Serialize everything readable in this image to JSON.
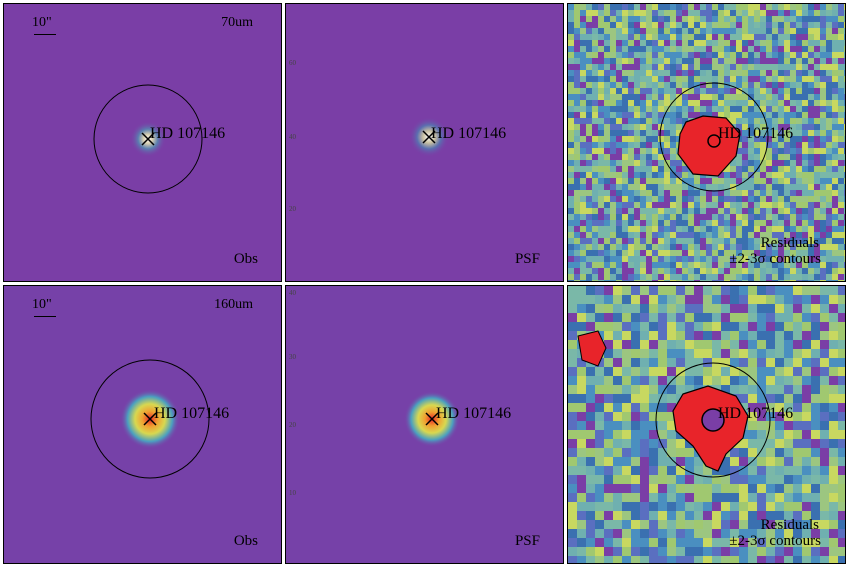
{
  "figure": {
    "rows": [
      {
        "band": "70um",
        "scale_label": "10\"",
        "obs_label": "Obs",
        "psf_label": "PSF",
        "residual_label": "Residuals",
        "contour_label": "±2-3σ contours",
        "star_label": "HD 107146",
        "tick_labels": [
          "60",
          "40",
          "20"
        ]
      },
      {
        "band": "160um",
        "scale_label": "10\"",
        "obs_label": "Obs",
        "psf_label": "PSF",
        "residual_label": "Residuals",
        "contour_label": "±2-3σ contours",
        "star_label": "HD 107146",
        "tick_labels": [
          "40",
          "30",
          "20",
          "10"
        ]
      }
    ],
    "colors": {
      "background": "#7a3ea6",
      "residual_peak": "#e8242a",
      "contour": "#000000"
    }
  }
}
